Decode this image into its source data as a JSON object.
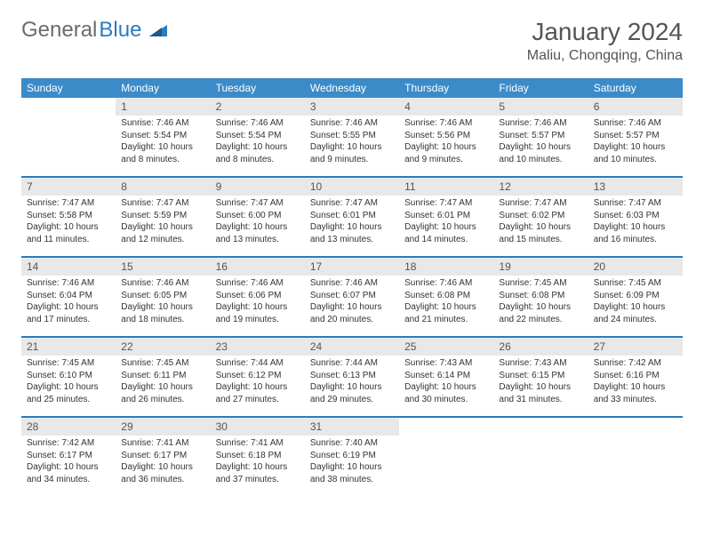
{
  "brand": {
    "part1": "General",
    "part2": "Blue"
  },
  "title": {
    "monthYear": "January 2024",
    "location": "Maliu, Chongqing, China"
  },
  "colors": {
    "headerBg": "#3b8bc9",
    "headerText": "#ffffff",
    "weekDivider": "#2b7bbf",
    "dayNumBg": "#e8e8e8",
    "brandGray": "#6b6b6b",
    "brandBlue": "#2b7bbf"
  },
  "weekdays": [
    "Sunday",
    "Monday",
    "Tuesday",
    "Wednesday",
    "Thursday",
    "Friday",
    "Saturday"
  ],
  "weeks": [
    [
      null,
      {
        "n": "1",
        "sr": "Sunrise: 7:46 AM",
        "ss": "Sunset: 5:54 PM",
        "d1": "Daylight: 10 hours",
        "d2": "and 8 minutes."
      },
      {
        "n": "2",
        "sr": "Sunrise: 7:46 AM",
        "ss": "Sunset: 5:54 PM",
        "d1": "Daylight: 10 hours",
        "d2": "and 8 minutes."
      },
      {
        "n": "3",
        "sr": "Sunrise: 7:46 AM",
        "ss": "Sunset: 5:55 PM",
        "d1": "Daylight: 10 hours",
        "d2": "and 9 minutes."
      },
      {
        "n": "4",
        "sr": "Sunrise: 7:46 AM",
        "ss": "Sunset: 5:56 PM",
        "d1": "Daylight: 10 hours",
        "d2": "and 9 minutes."
      },
      {
        "n": "5",
        "sr": "Sunrise: 7:46 AM",
        "ss": "Sunset: 5:57 PM",
        "d1": "Daylight: 10 hours",
        "d2": "and 10 minutes."
      },
      {
        "n": "6",
        "sr": "Sunrise: 7:46 AM",
        "ss": "Sunset: 5:57 PM",
        "d1": "Daylight: 10 hours",
        "d2": "and 10 minutes."
      }
    ],
    [
      {
        "n": "7",
        "sr": "Sunrise: 7:47 AM",
        "ss": "Sunset: 5:58 PM",
        "d1": "Daylight: 10 hours",
        "d2": "and 11 minutes."
      },
      {
        "n": "8",
        "sr": "Sunrise: 7:47 AM",
        "ss": "Sunset: 5:59 PM",
        "d1": "Daylight: 10 hours",
        "d2": "and 12 minutes."
      },
      {
        "n": "9",
        "sr": "Sunrise: 7:47 AM",
        "ss": "Sunset: 6:00 PM",
        "d1": "Daylight: 10 hours",
        "d2": "and 13 minutes."
      },
      {
        "n": "10",
        "sr": "Sunrise: 7:47 AM",
        "ss": "Sunset: 6:01 PM",
        "d1": "Daylight: 10 hours",
        "d2": "and 13 minutes."
      },
      {
        "n": "11",
        "sr": "Sunrise: 7:47 AM",
        "ss": "Sunset: 6:01 PM",
        "d1": "Daylight: 10 hours",
        "d2": "and 14 minutes."
      },
      {
        "n": "12",
        "sr": "Sunrise: 7:47 AM",
        "ss": "Sunset: 6:02 PM",
        "d1": "Daylight: 10 hours",
        "d2": "and 15 minutes."
      },
      {
        "n": "13",
        "sr": "Sunrise: 7:47 AM",
        "ss": "Sunset: 6:03 PM",
        "d1": "Daylight: 10 hours",
        "d2": "and 16 minutes."
      }
    ],
    [
      {
        "n": "14",
        "sr": "Sunrise: 7:46 AM",
        "ss": "Sunset: 6:04 PM",
        "d1": "Daylight: 10 hours",
        "d2": "and 17 minutes."
      },
      {
        "n": "15",
        "sr": "Sunrise: 7:46 AM",
        "ss": "Sunset: 6:05 PM",
        "d1": "Daylight: 10 hours",
        "d2": "and 18 minutes."
      },
      {
        "n": "16",
        "sr": "Sunrise: 7:46 AM",
        "ss": "Sunset: 6:06 PM",
        "d1": "Daylight: 10 hours",
        "d2": "and 19 minutes."
      },
      {
        "n": "17",
        "sr": "Sunrise: 7:46 AM",
        "ss": "Sunset: 6:07 PM",
        "d1": "Daylight: 10 hours",
        "d2": "and 20 minutes."
      },
      {
        "n": "18",
        "sr": "Sunrise: 7:46 AM",
        "ss": "Sunset: 6:08 PM",
        "d1": "Daylight: 10 hours",
        "d2": "and 21 minutes."
      },
      {
        "n": "19",
        "sr": "Sunrise: 7:45 AM",
        "ss": "Sunset: 6:08 PM",
        "d1": "Daylight: 10 hours",
        "d2": "and 22 minutes."
      },
      {
        "n": "20",
        "sr": "Sunrise: 7:45 AM",
        "ss": "Sunset: 6:09 PM",
        "d1": "Daylight: 10 hours",
        "d2": "and 24 minutes."
      }
    ],
    [
      {
        "n": "21",
        "sr": "Sunrise: 7:45 AM",
        "ss": "Sunset: 6:10 PM",
        "d1": "Daylight: 10 hours",
        "d2": "and 25 minutes."
      },
      {
        "n": "22",
        "sr": "Sunrise: 7:45 AM",
        "ss": "Sunset: 6:11 PM",
        "d1": "Daylight: 10 hours",
        "d2": "and 26 minutes."
      },
      {
        "n": "23",
        "sr": "Sunrise: 7:44 AM",
        "ss": "Sunset: 6:12 PM",
        "d1": "Daylight: 10 hours",
        "d2": "and 27 minutes."
      },
      {
        "n": "24",
        "sr": "Sunrise: 7:44 AM",
        "ss": "Sunset: 6:13 PM",
        "d1": "Daylight: 10 hours",
        "d2": "and 29 minutes."
      },
      {
        "n": "25",
        "sr": "Sunrise: 7:43 AM",
        "ss": "Sunset: 6:14 PM",
        "d1": "Daylight: 10 hours",
        "d2": "and 30 minutes."
      },
      {
        "n": "26",
        "sr": "Sunrise: 7:43 AM",
        "ss": "Sunset: 6:15 PM",
        "d1": "Daylight: 10 hours",
        "d2": "and 31 minutes."
      },
      {
        "n": "27",
        "sr": "Sunrise: 7:42 AM",
        "ss": "Sunset: 6:16 PM",
        "d1": "Daylight: 10 hours",
        "d2": "and 33 minutes."
      }
    ],
    [
      {
        "n": "28",
        "sr": "Sunrise: 7:42 AM",
        "ss": "Sunset: 6:17 PM",
        "d1": "Daylight: 10 hours",
        "d2": "and 34 minutes."
      },
      {
        "n": "29",
        "sr": "Sunrise: 7:41 AM",
        "ss": "Sunset: 6:17 PM",
        "d1": "Daylight: 10 hours",
        "d2": "and 36 minutes."
      },
      {
        "n": "30",
        "sr": "Sunrise: 7:41 AM",
        "ss": "Sunset: 6:18 PM",
        "d1": "Daylight: 10 hours",
        "d2": "and 37 minutes."
      },
      {
        "n": "31",
        "sr": "Sunrise: 7:40 AM",
        "ss": "Sunset: 6:19 PM",
        "d1": "Daylight: 10 hours",
        "d2": "and 38 minutes."
      },
      null,
      null,
      null
    ]
  ]
}
